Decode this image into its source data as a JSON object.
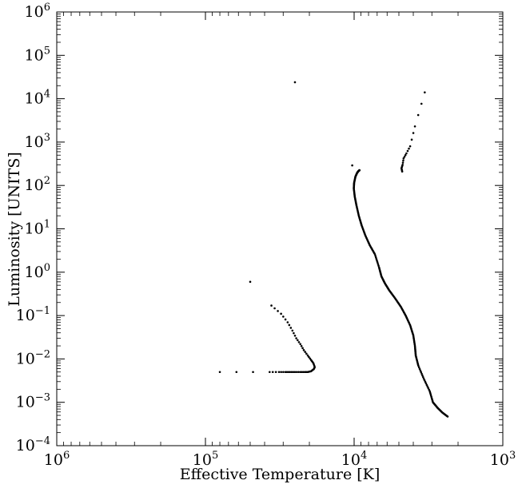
{
  "chart_data": {
    "type": "scatter",
    "title": "",
    "xlabel": "Effective Temperature [K]",
    "ylabel": "Luminosity [UNITS]",
    "xscale": "log",
    "yscale": "log",
    "x_inverted": true,
    "xlim": [
      1000000,
      1000
    ],
    "ylim": [
      0.0001,
      1000000
    ],
    "x_ticks": [
      {
        "value": 1000000,
        "base": "10",
        "exp": "6"
      },
      {
        "value": 100000,
        "base": "10",
        "exp": "5"
      },
      {
        "value": 10000,
        "base": "10",
        "exp": "4"
      },
      {
        "value": 1000,
        "base": "10",
        "exp": "3"
      }
    ],
    "y_ticks": [
      {
        "value": 0.0001,
        "base": "10",
        "exp": "−4"
      },
      {
        "value": 0.001,
        "base": "10",
        "exp": "−3"
      },
      {
        "value": 0.01,
        "base": "10",
        "exp": "−2"
      },
      {
        "value": 0.1,
        "base": "10",
        "exp": "−1"
      },
      {
        "value": 1,
        "base": "10",
        "exp": "0"
      },
      {
        "value": 10,
        "base": "10",
        "exp": "1"
      },
      {
        "value": 100,
        "base": "10",
        "exp": "2"
      },
      {
        "value": 1000,
        "base": "10",
        "exp": "3"
      },
      {
        "value": 10000,
        "base": "10",
        "exp": "4"
      },
      {
        "value": 100000,
        "base": "10",
        "exp": "5"
      },
      {
        "value": 1000000,
        "base": "10",
        "exp": "6"
      }
    ],
    "grid": false,
    "marker_color": "#000000",
    "series": [
      {
        "points": [
          [
            9200,
            225
          ],
          [
            9350,
            215
          ],
          [
            9550,
            195
          ],
          [
            9800,
            160
          ],
          [
            10000,
            115
          ],
          [
            10050,
            85
          ],
          [
            9900,
            55
          ],
          [
            9650,
            35
          ],
          [
            9300,
            20
          ],
          [
            8900,
            12
          ],
          [
            8400,
            7
          ],
          [
            7850,
            4.2
          ],
          [
            7250,
            2.6
          ],
          [
            6800,
            1.3
          ],
          [
            6550,
            0.8
          ],
          [
            6200,
            0.55
          ],
          [
            5800,
            0.38
          ],
          [
            5300,
            0.25
          ],
          [
            4850,
            0.16
          ],
          [
            4500,
            0.1
          ],
          [
            4200,
            0.06
          ],
          [
            4000,
            0.035
          ],
          [
            3900,
            0.02
          ],
          [
            3850,
            0.012
          ],
          [
            3700,
            0.007
          ],
          [
            3400,
            0.0035
          ],
          [
            3100,
            0.0018
          ],
          [
            2950,
            0.001
          ],
          [
            2750,
            0.00075
          ],
          [
            2550,
            0.00058
          ],
          [
            2350,
            0.00047
          ]
        ]
      },
      {
        "points": [
          [
            4750,
            210
          ],
          [
            4800,
            250
          ],
          [
            4720,
            300
          ],
          [
            4650,
            420
          ],
          [
            4450,
            550
          ],
          [
            4200,
            800
          ],
          [
            3900,
            2300
          ],
          [
            3350,
            14000
          ]
        ]
      },
      {
        "points": [
          [
            10300,
            290
          ],
          [
            25000,
            24000
          ],
          [
            50000,
            0.6
          ]
        ]
      },
      {
        "points": [
          [
            80000,
            0.005
          ],
          [
            37000,
            0.005
          ],
          [
            32000,
            0.005
          ],
          [
            29000,
            0.005
          ],
          [
            27000,
            0.005
          ],
          [
            25000,
            0.005
          ],
          [
            23000,
            0.005
          ],
          [
            21500,
            0.005
          ],
          [
            20500,
            0.005
          ],
          [
            19500,
            0.0052
          ],
          [
            18700,
            0.0058
          ],
          [
            18400,
            0.0065
          ],
          [
            18800,
            0.008
          ],
          [
            19500,
            0.0095
          ],
          [
            20500,
            0.012
          ],
          [
            21800,
            0.016
          ],
          [
            23000,
            0.022
          ],
          [
            24500,
            0.03
          ],
          [
            26000,
            0.045
          ],
          [
            28000,
            0.07
          ],
          [
            31000,
            0.11
          ],
          [
            36000,
            0.17
          ]
        ]
      }
    ]
  }
}
